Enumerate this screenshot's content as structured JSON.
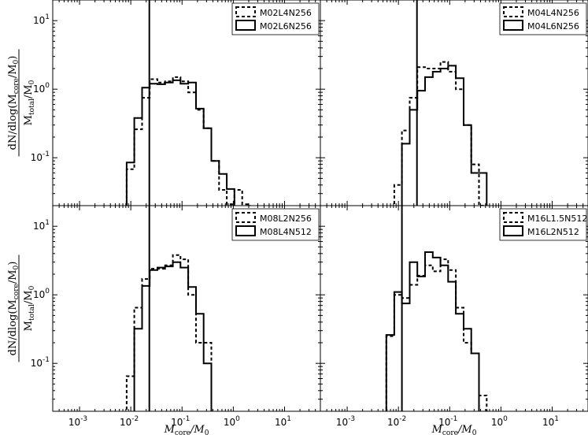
{
  "chart_data": [
    {
      "type": "line",
      "panel": "top-left",
      "xscale": "log",
      "yscale": "log",
      "xlim": [
        0.0003,
        50
      ],
      "ylim": [
        0.02,
        20
      ],
      "xlabel": "",
      "ylabel": "dN/dlog(M_core/M_0) / (M_total/M_0)",
      "vline": 0.023,
      "legend_position": "top-right",
      "series": [
        {
          "name": "M02L4N256",
          "style": "dashed",
          "edges": [
            0.0083,
            0.0117,
            0.0166,
            0.0234,
            0.0331,
            0.0468,
            0.0661,
            0.0934,
            0.132,
            0.187,
            0.264,
            0.373,
            0.527,
            0.745,
            1.05,
            1.49,
            2.1
          ],
          "values": [
            0.068,
            0.26,
            0.75,
            1.4,
            1.25,
            1.3,
            1.5,
            1.3,
            0.9,
            0.5,
            0.27,
            0.09,
            0.034,
            0.021,
            0.034,
            0.021
          ]
        },
        {
          "name": "M02L6N256",
          "style": "solid",
          "edges": [
            0.0083,
            0.0117,
            0.0166,
            0.0234,
            0.0331,
            0.0468,
            0.0661,
            0.0934,
            0.132,
            0.187,
            0.264,
            0.373,
            0.527,
            0.745,
            1.05
          ],
          "values": [
            0.085,
            0.38,
            1.05,
            1.2,
            1.18,
            1.25,
            1.35,
            1.2,
            1.25,
            0.52,
            0.27,
            0.09,
            0.058,
            0.035
          ]
        }
      ]
    },
    {
      "type": "line",
      "panel": "top-right",
      "xscale": "log",
      "yscale": "log",
      "xlim": [
        0.0003,
        50
      ],
      "ylim": [
        0.02,
        20
      ],
      "xlabel": "",
      "ylabel": "",
      "vline": 0.023,
      "legend_position": "top-right",
      "series": [
        {
          "name": "M04L4N256",
          "style": "dashed",
          "edges": [
            0.0083,
            0.0117,
            0.0166,
            0.0234,
            0.0331,
            0.0468,
            0.0661,
            0.0934,
            0.132,
            0.187,
            0.264,
            0.373,
            0.527
          ],
          "values": [
            0.04,
            0.25,
            0.75,
            2.1,
            2.0,
            2.0,
            2.5,
            1.8,
            1.0,
            0.3,
            0.08,
            0.02
          ]
        },
        {
          "name": "M04L6N256",
          "style": "solid",
          "edges": [
            0.0117,
            0.0166,
            0.0234,
            0.0331,
            0.0468,
            0.0661,
            0.0934,
            0.132,
            0.187,
            0.264,
            0.373,
            0.527
          ],
          "values": [
            0.16,
            0.5,
            0.95,
            1.5,
            1.8,
            2.0,
            2.2,
            1.45,
            0.3,
            0.06,
            0.06
          ]
        }
      ]
    },
    {
      "type": "line",
      "panel": "bottom-left",
      "xscale": "log",
      "yscale": "log",
      "xlim": [
        0.0003,
        50
      ],
      "ylim": [
        0.02,
        20
      ],
      "xlabel": "M_core/M_0",
      "ylabel": "dN/dlog(M_core/M_0) / (M_total/M_0)",
      "vline": 0.023,
      "legend_position": "top-right",
      "series": [
        {
          "name": "M08L2N256",
          "style": "dashed",
          "edges": [
            0.0083,
            0.0117,
            0.0166,
            0.0234,
            0.0331,
            0.0468,
            0.0661,
            0.0934,
            0.132,
            0.187,
            0.264,
            0.373
          ],
          "values": [
            0.065,
            0.65,
            1.7,
            2.4,
            2.4,
            2.7,
            3.8,
            3.3,
            1.0,
            0.2,
            0.2
          ]
        },
        {
          "name": "M08L4N512",
          "style": "solid",
          "edges": [
            0.0117,
            0.0166,
            0.0234,
            0.0331,
            0.0468,
            0.0661,
            0.0934,
            0.132,
            0.187,
            0.264,
            0.373
          ],
          "values": [
            0.32,
            1.35,
            2.3,
            2.5,
            2.6,
            3.0,
            2.5,
            1.3,
            0.53,
            0.1
          ]
        }
      ]
    },
    {
      "type": "line",
      "panel": "bottom-right",
      "xscale": "log",
      "yscale": "log",
      "xlim": [
        0.0003,
        50
      ],
      "ylim": [
        0.02,
        20
      ],
      "xlabel": "M_core/M_0",
      "ylabel": "",
      "vline": 0.0117,
      "legend_position": "top-right",
      "series": [
        {
          "name": "M16L1.5N512",
          "style": "dashed",
          "edges": [
            0.0058,
            0.0083,
            0.0117,
            0.0166,
            0.0234,
            0.0331,
            0.0468,
            0.0661,
            0.0934,
            0.132,
            0.187,
            0.264,
            0.373,
            0.527
          ],
          "values": [
            0.25,
            1.0,
            0.9,
            1.4,
            1.9,
            2.7,
            2.2,
            3.3,
            2.3,
            0.65,
            0.2,
            0.14,
            0.034
          ]
        },
        {
          "name": "M16L2N512",
          "style": "solid",
          "edges": [
            0.0058,
            0.0083,
            0.0117,
            0.0166,
            0.0234,
            0.0331,
            0.0468,
            0.0661,
            0.0934,
            0.132,
            0.187,
            0.264,
            0.373
          ],
          "values": [
            0.26,
            1.1,
            0.75,
            3.0,
            1.85,
            4.2,
            3.5,
            2.7,
            1.55,
            0.53,
            0.32,
            0.14
          ]
        }
      ]
    }
  ],
  "tick_labels": {
    "x": [
      {
        "base": "10",
        "exp": "-3",
        "value": 0.001
      },
      {
        "base": "10",
        "exp": "-2",
        "value": 0.01
      },
      {
        "base": "10",
        "exp": "-1",
        "value": 0.1
      },
      {
        "base": "10",
        "exp": "0",
        "value": 1
      },
      {
        "base": "10",
        "exp": "1",
        "value": 10
      }
    ],
    "y": [
      {
        "base": "10",
        "exp": "-1",
        "value": 0.1
      },
      {
        "base": "10",
        "exp": "0",
        "value": 1
      },
      {
        "base": "10",
        "exp": "1",
        "value": 10
      }
    ]
  },
  "labels": {
    "ylabel_num": "dN/dlog(M",
    "ylabel_num_sub": "core",
    "ylabel_num_tail": "/M",
    "ylabel_num_sub2": "0",
    "ylabel_num_end": ")",
    "ylabel_den": "M",
    "ylabel_den_sub": "total",
    "ylabel_den_tail": "/M",
    "ylabel_den_sub2": "0",
    "xlabel_main": "M",
    "xlabel_sub": "core",
    "xlabel_tail": "/M",
    "xlabel_sub2": "0"
  }
}
